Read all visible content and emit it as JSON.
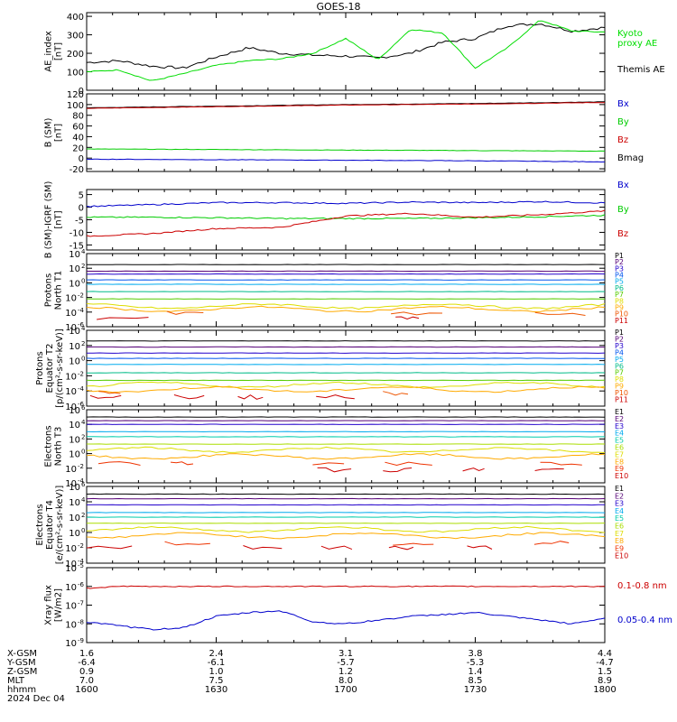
{
  "title": "GOES-18",
  "panels": [
    {
      "id": "ae",
      "ylabel_lines": [
        "AE_index",
        "[nT]"
      ],
      "yticks": [
        "400",
        "300",
        "200",
        "100",
        "0"
      ],
      "legend": [
        {
          "label": "Kyoto",
          "color": "#00dd00"
        },
        {
          "label": "proxy AE",
          "color": "#00dd00"
        },
        {
          "label": "Themis AE",
          "color": "#000000"
        }
      ]
    },
    {
      "id": "bsm",
      "ylabel_lines": [
        "B (SM)",
        "[nT]"
      ],
      "yticks": [
        "120",
        "100",
        "80",
        "60",
        "40",
        "20",
        "0",
        "-20"
      ],
      "legend": [
        {
          "label": "Bx",
          "color": "#0000cc"
        },
        {
          "label": "By",
          "color": "#00cc00"
        },
        {
          "label": "Bz",
          "color": "#cc0000"
        },
        {
          "label": "Bmag",
          "color": "#000000"
        }
      ]
    },
    {
      "id": "bigrf",
      "ylabel_lines": [
        "B (SM)-IGRF (SM)",
        "[nT]"
      ],
      "yticks": [
        "5",
        "0",
        "-5",
        "-10",
        "-15"
      ],
      "legend": [
        {
          "label": "Bx",
          "color": "#0000cc"
        },
        {
          "label": "By",
          "color": "#00cc00"
        },
        {
          "label": "Bz",
          "color": "#cc0000"
        }
      ]
    },
    {
      "id": "pnorth",
      "ylabel_lines": [
        "Protons",
        "North T1"
      ],
      "legend": [
        {
          "label": "P1",
          "color": "#000000"
        },
        {
          "label": "P2",
          "color": "#550077"
        },
        {
          "label": "P3",
          "color": "#2200cc"
        },
        {
          "label": "P4",
          "color": "#0055ee"
        },
        {
          "label": "P5",
          "color": "#00aaee"
        },
        {
          "label": "P6",
          "color": "#00bb88"
        },
        {
          "label": "P7",
          "color": "#55cc00"
        },
        {
          "label": "P8",
          "color": "#dddd00"
        },
        {
          "label": "P9",
          "color": "#ffaa00"
        },
        {
          "label": "P10",
          "color": "#ee5500"
        },
        {
          "label": "P11",
          "color": "#cc0000"
        }
      ]
    },
    {
      "id": "peq",
      "ylabel_lines": [
        "Protons",
        "Equator T2",
        "[p/(cm²-s-sr-keV)]"
      ],
      "legend": [
        {
          "label": "P1",
          "color": "#000000"
        },
        {
          "label": "P2",
          "color": "#550077"
        },
        {
          "label": "P3",
          "color": "#2200cc"
        },
        {
          "label": "P4",
          "color": "#0055ee"
        },
        {
          "label": "P5",
          "color": "#00aaee"
        },
        {
          "label": "P6",
          "color": "#00bb88"
        },
        {
          "label": "P7",
          "color": "#55cc00"
        },
        {
          "label": "P8",
          "color": "#dddd00"
        },
        {
          "label": "P9",
          "color": "#ffaa00"
        },
        {
          "label": "P10",
          "color": "#ee5500"
        },
        {
          "label": "P11",
          "color": "#cc0000"
        }
      ]
    },
    {
      "id": "enorth",
      "ylabel_lines": [
        "Electrons",
        "North T3"
      ],
      "legend": [
        {
          "label": "E1",
          "color": "#000000"
        },
        {
          "label": "E2",
          "color": "#550077"
        },
        {
          "label": "E3",
          "color": "#2200cc"
        },
        {
          "label": "E4",
          "color": "#00aaee"
        },
        {
          "label": "E5",
          "color": "#00ccaa"
        },
        {
          "label": "E6",
          "color": "#aadd00"
        },
        {
          "label": "E7",
          "color": "#dddd00"
        },
        {
          "label": "E8",
          "color": "#ffaa00"
        },
        {
          "label": "E9",
          "color": "#ee3300"
        },
        {
          "label": "E10",
          "color": "#cc0000"
        }
      ]
    },
    {
      "id": "eeq",
      "ylabel_lines": [
        "Electrons",
        "Equator T4",
        "[e/(cm²-s-sr-keV)]"
      ],
      "legend": [
        {
          "label": "E1",
          "color": "#000000"
        },
        {
          "label": "E2",
          "color": "#550077"
        },
        {
          "label": "E3",
          "color": "#2200cc"
        },
        {
          "label": "E4",
          "color": "#00aaee"
        },
        {
          "label": "E5",
          "color": "#00ccaa"
        },
        {
          "label": "E6",
          "color": "#aadd00"
        },
        {
          "label": "E7",
          "color": "#dddd00"
        },
        {
          "label": "E8",
          "color": "#ffaa00"
        },
        {
          "label": "E9",
          "color": "#ee3300"
        },
        {
          "label": "E10",
          "color": "#cc0000"
        }
      ]
    },
    {
      "id": "xray",
      "ylabel_lines": [
        "Xray flux",
        "[W/m2]"
      ],
      "legend": [
        {
          "label": "0.1-0.8 nm",
          "color": "#cc0000"
        },
        {
          "label": "0.05-0.4 nm",
          "color": "#0000cc"
        }
      ]
    }
  ],
  "bottom": {
    "row_labels": [
      "X-GSM",
      "Y-GSM",
      "Z-GSM",
      "MLT",
      "hhmm",
      "2024 Dec 04"
    ],
    "columns": [
      [
        "1.6",
        "-6.4",
        "0.9",
        "7.0",
        "1600"
      ],
      [
        "2.4",
        "-6.1",
        "1.0",
        "7.5",
        "1630"
      ],
      [
        "3.1",
        "-5.7",
        "1.2",
        "8.0",
        "1700"
      ],
      [
        "3.8",
        "-5.3",
        "1.4",
        "8.5",
        "1730"
      ],
      [
        "4.4",
        "-4.7",
        "1.5",
        "8.9",
        "1800"
      ]
    ]
  },
  "chart_data": [
    {
      "type": "line",
      "x": [
        "16:00",
        "16:07",
        "16:15",
        "16:22",
        "16:30",
        "16:37",
        "16:45",
        "16:52",
        "17:00",
        "17:07",
        "17:15",
        "17:22",
        "17:30",
        "17:37",
        "17:45",
        "17:52",
        "18:00"
      ],
      "ylabel": "AE_index [nT]",
      "ylim": [
        0,
        420
      ],
      "series": [
        {
          "name": "Kyoto proxy AE",
          "values": [
            100,
            110,
            50,
            90,
            135,
            160,
            170,
            200,
            280,
            165,
            330,
            310,
            120,
            230,
            380,
            320,
            315
          ]
        },
        {
          "name": "Themis AE",
          "values": [
            150,
            160,
            130,
            120,
            180,
            230,
            200,
            190,
            185,
            175,
            200,
            260,
            280,
            350,
            360,
            320,
            340
          ]
        }
      ]
    },
    {
      "type": "line",
      "x": [
        "16:00",
        "16:30",
        "17:00",
        "17:30",
        "18:00"
      ],
      "ylabel": "B (SM) [nT]",
      "ylim": [
        -25,
        120
      ],
      "series": [
        {
          "name": "Bx",
          "values": [
            -2,
            -3,
            -4,
            -5,
            -7
          ]
        },
        {
          "name": "By",
          "values": [
            17,
            16,
            15,
            14,
            13
          ]
        },
        {
          "name": "Bz",
          "values": [
            93,
            96,
            99,
            101,
            104
          ]
        },
        {
          "name": "Bmag",
          "values": [
            94,
            97,
            100,
            102,
            105
          ]
        }
      ]
    },
    {
      "type": "line",
      "x": [
        "16:00",
        "16:15",
        "16:30",
        "16:45",
        "17:00",
        "17:15",
        "17:30",
        "17:45",
        "18:00"
      ],
      "ylabel": "B (SM)-IGRF (SM) [nT]",
      "ylim": [
        -17,
        7
      ],
      "series": [
        {
          "name": "Bx",
          "values": [
            0.3,
            1.0,
            1.8,
            1.8,
            1.5,
            2.0,
            1.8,
            2.2,
            1.7
          ]
        },
        {
          "name": "By",
          "values": [
            -4.0,
            -4.0,
            -4.2,
            -4.5,
            -4.5,
            -4.5,
            -4.2,
            -3.8,
            -3.2
          ]
        },
        {
          "name": "Bz",
          "values": [
            -11.5,
            -10.5,
            -8.5,
            -8.0,
            -3.5,
            -2.5,
            -4.0,
            -3.0,
            -1.5
          ]
        }
      ]
    },
    {
      "type": "line",
      "ylabel": "Protons North T1 [p/(cm²-s-sr-keV)]",
      "ylim_log10": [
        -6,
        4
      ],
      "series": [
        {
          "name": "P1",
          "log10_level": 2.5
        },
        {
          "name": "P2",
          "log10_level": 1.6
        },
        {
          "name": "P3",
          "log10_level": 1.2
        },
        {
          "name": "P4",
          "log10_level": 0.4
        },
        {
          "name": "P5",
          "log10_level": -0.2
        },
        {
          "name": "P6",
          "log10_level": -1.2
        },
        {
          "name": "P7",
          "log10_level": -2.2
        },
        {
          "name": "P8",
          "log10_level": -3.2
        },
        {
          "name": "P9",
          "log10_level": -3.6
        },
        {
          "name": "P10",
          "log10_level": -4.2
        },
        {
          "name": "P11",
          "log10_level": -4.8
        }
      ]
    },
    {
      "type": "line",
      "ylabel": "Protons Equator T2 [p/(cm²-s-sr-keV)]",
      "ylim_log10": [
        -6,
        4
      ],
      "series": [
        {
          "name": "P1",
          "log10_level": 2.6
        },
        {
          "name": "P2",
          "log10_level": 1.8
        },
        {
          "name": "P3",
          "log10_level": 1.0
        },
        {
          "name": "P4",
          "log10_level": 0.3
        },
        {
          "name": "P5",
          "log10_level": -0.5
        },
        {
          "name": "P6",
          "log10_level": -1.6
        },
        {
          "name": "P7",
          "log10_level": -2.6
        },
        {
          "name": "P8",
          "log10_level": -3.2
        },
        {
          "name": "P9",
          "log10_level": -3.8
        },
        {
          "name": "P10",
          "log10_level": -4.3
        },
        {
          "name": "P11",
          "log10_level": -4.8
        }
      ]
    },
    {
      "type": "line",
      "ylabel": "Electrons North T3 [e/(cm²-s-sr-keV)]",
      "ylim_log10": [
        -4,
        6
      ],
      "series": [
        {
          "name": "E1",
          "log10_level": 5.0
        },
        {
          "name": "E2",
          "log10_level": 4.5
        },
        {
          "name": "E3",
          "log10_level": 4.0
        },
        {
          "name": "E4",
          "log10_level": 3.0
        },
        {
          "name": "E5",
          "log10_level": 2.3
        },
        {
          "name": "E6",
          "log10_level": 1.3
        },
        {
          "name": "E7",
          "log10_level": 0.5
        },
        {
          "name": "E8",
          "log10_level": -0.4
        },
        {
          "name": "E9",
          "log10_level": -1.4
        },
        {
          "name": "E10",
          "log10_level": -2.2
        }
      ]
    },
    {
      "type": "line",
      "ylabel": "Electrons Equator T4 [e/(cm²-s-sr-keV)]",
      "ylim_log10": [
        -4,
        6
      ],
      "series": [
        {
          "name": "E1",
          "log10_level": 5.0
        },
        {
          "name": "E2",
          "log10_level": 4.4
        },
        {
          "name": "E3",
          "log10_level": 3.6
        },
        {
          "name": "E4",
          "log10_level": 2.6
        },
        {
          "name": "E5",
          "log10_level": 2.0
        },
        {
          "name": "E6",
          "log10_level": 1.2
        },
        {
          "name": "E7",
          "log10_level": 0.4
        },
        {
          "name": "E8",
          "log10_level": -0.4
        },
        {
          "name": "E9",
          "log10_level": -1.4
        },
        {
          "name": "E10",
          "log10_level": -2.0
        }
      ]
    },
    {
      "type": "line",
      "x": [
        "16:00",
        "16:07",
        "16:15",
        "16:22",
        "16:30",
        "16:37",
        "16:45",
        "16:52",
        "17:00",
        "17:07",
        "17:15",
        "17:22",
        "17:30",
        "17:37",
        "17:45",
        "17:52",
        "18:00"
      ],
      "ylabel": "Xray flux [W/m2]",
      "ylim_log10": [
        -9,
        -5
      ],
      "series": [
        {
          "name": "0.1-0.8 nm",
          "log10_values": [
            -6.1,
            -6.0,
            -6.0,
            -6.0,
            -6.0,
            -6.0,
            -6.0,
            -6.0,
            -6.0,
            -6.0,
            -6.0,
            -6.0,
            -6.0,
            -6.0,
            -6.0,
            -6.0,
            -6.0
          ]
        },
        {
          "name": "0.05-0.4 nm",
          "log10_values": [
            -7.9,
            -8.1,
            -8.3,
            -8.2,
            -7.6,
            -7.4,
            -7.3,
            -7.9,
            -8.0,
            -7.8,
            -7.6,
            -7.5,
            -7.4,
            -7.6,
            -7.8,
            -8.0,
            -7.7
          ]
        }
      ]
    }
  ]
}
